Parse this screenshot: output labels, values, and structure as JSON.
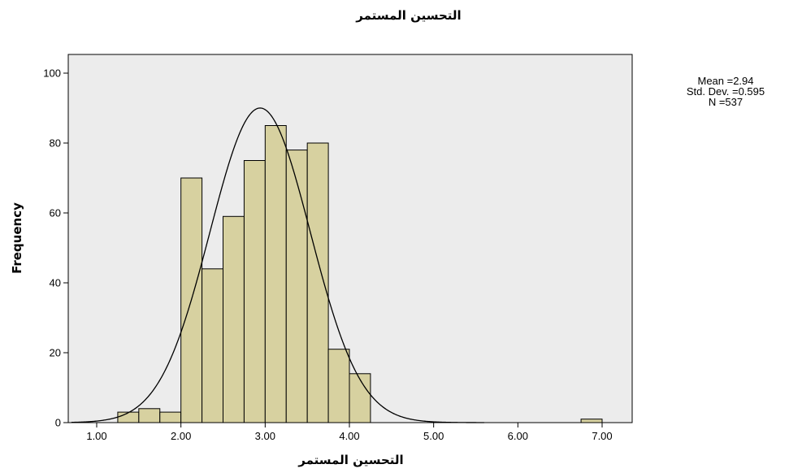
{
  "chart_data": {
    "type": "bar",
    "subtype": "histogram",
    "title": "التحسين المستمر",
    "xlabel": "التحسين المستمر",
    "ylabel": "Frequency",
    "xlim": [
      0.7,
      7.35
    ],
    "ylim": [
      0,
      105
    ],
    "x_ticks": [
      1.0,
      2.0,
      3.0,
      4.0,
      5.0,
      6.0,
      7.0
    ],
    "x_tick_labels": [
      "1.00",
      "2.00",
      "3.00",
      "4.00",
      "5.00",
      "6.00",
      "7.00"
    ],
    "y_ticks": [
      0,
      20,
      40,
      60,
      80,
      100
    ],
    "y_tick_labels": [
      "0",
      "20",
      "40",
      "60",
      "80",
      "100"
    ],
    "bin_width": 0.25,
    "bins": [
      {
        "start": 1.25,
        "end": 1.5,
        "count": 3
      },
      {
        "start": 1.5,
        "end": 1.75,
        "count": 4
      },
      {
        "start": 1.75,
        "end": 2.0,
        "count": 3
      },
      {
        "start": 2.0,
        "end": 2.25,
        "count": 70
      },
      {
        "start": 2.25,
        "end": 2.5,
        "count": 44
      },
      {
        "start": 2.5,
        "end": 2.75,
        "count": 59
      },
      {
        "start": 2.75,
        "end": 3.0,
        "count": 75
      },
      {
        "start": 3.0,
        "end": 3.25,
        "count": 85
      },
      {
        "start": 3.25,
        "end": 3.5,
        "count": 78
      },
      {
        "start": 3.5,
        "end": 3.75,
        "count": 80
      },
      {
        "start": 3.75,
        "end": 4.0,
        "count": 21
      },
      {
        "start": 4.0,
        "end": 4.25,
        "count": 14
      },
      {
        "start": 6.75,
        "end": 7.0,
        "count": 1
      }
    ],
    "normal_curve": {
      "mean": 2.94,
      "std": 0.595,
      "n": 537
    },
    "stats": {
      "mean_label": "Mean =2.94",
      "std_label": "Std. Dev. =0.595",
      "n_label": "N =537"
    },
    "grid": false,
    "legend": "none",
    "colors": {
      "plot_background": "#ececec",
      "bar_fill": "#d7d1a0",
      "bar_stroke": "#000000",
      "curve": "#000000"
    }
  }
}
